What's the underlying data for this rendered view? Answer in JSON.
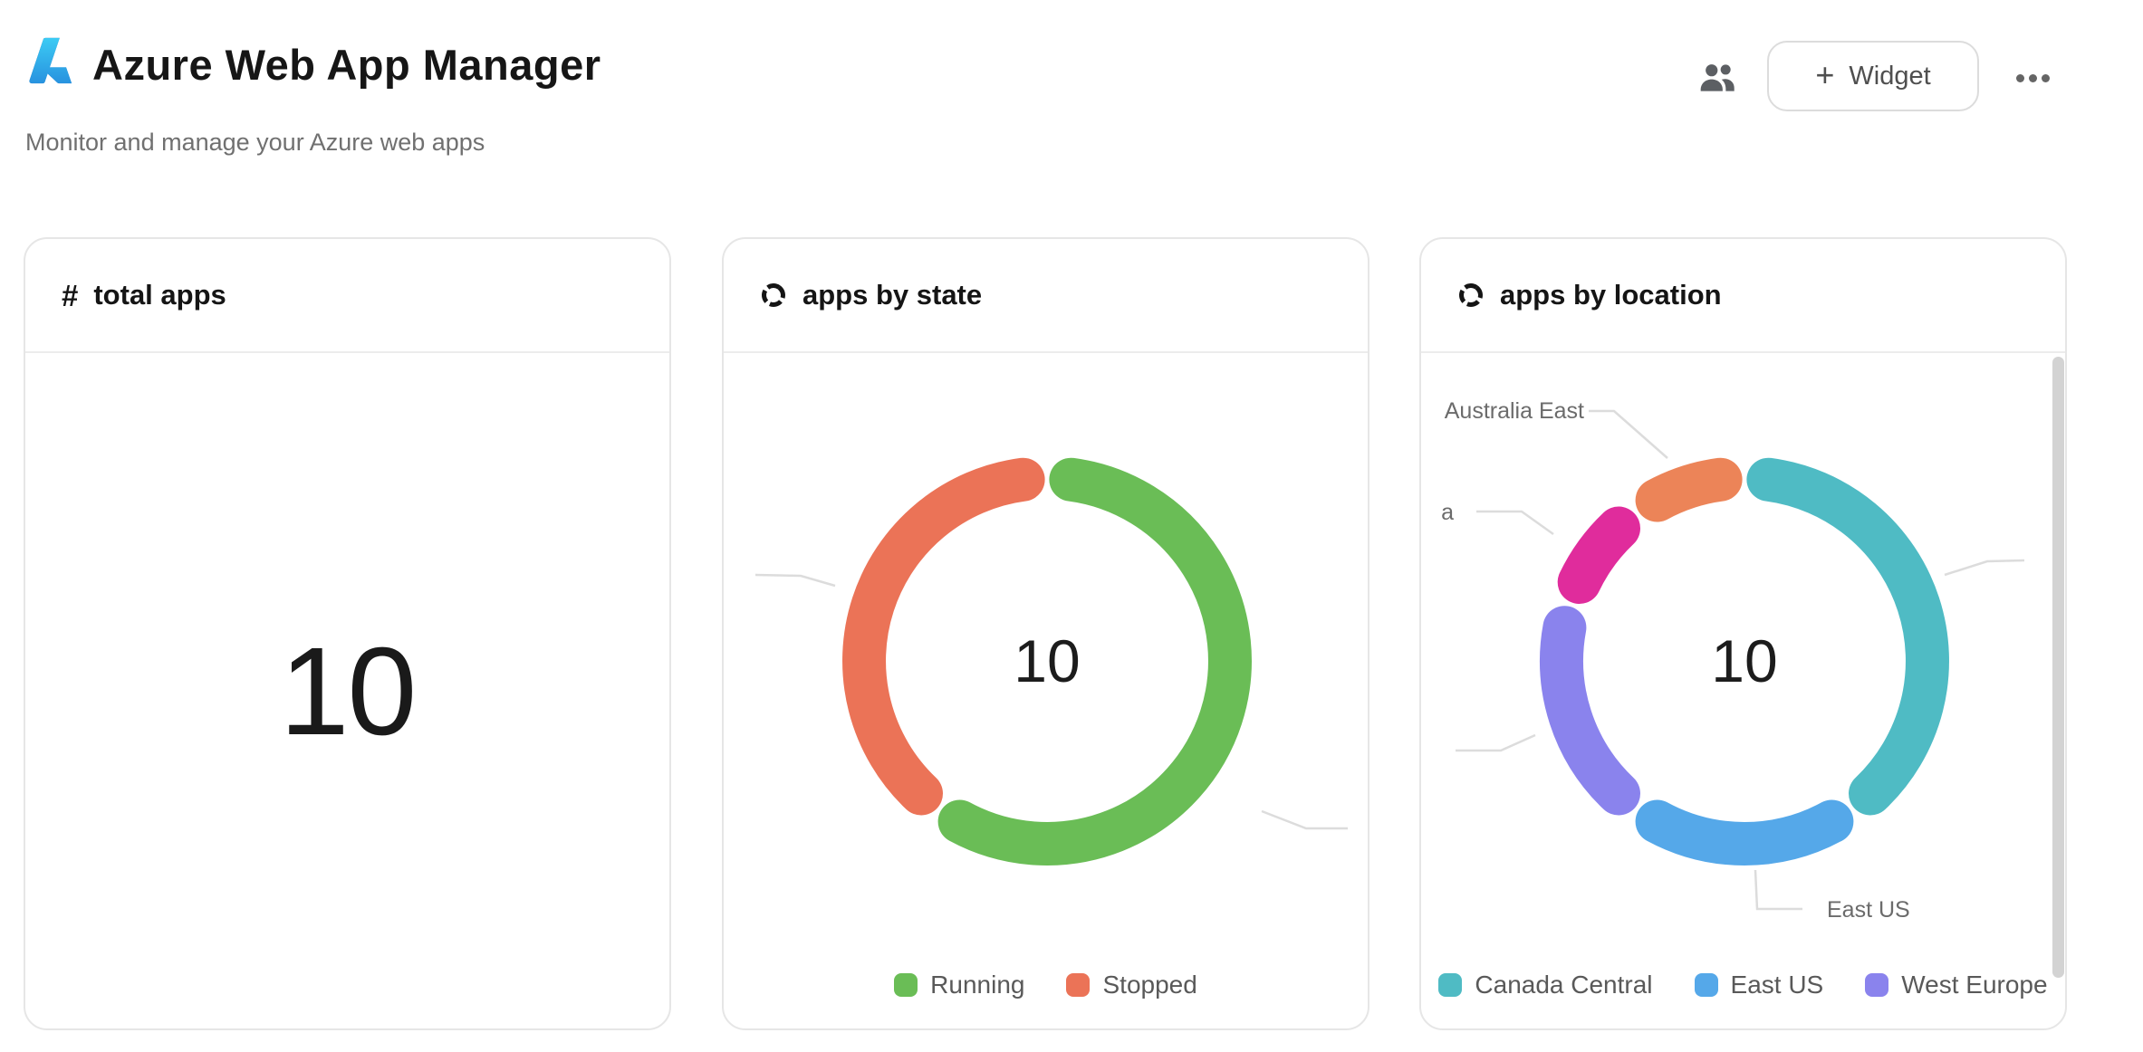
{
  "header": {
    "app_title": "Azure Web App Manager",
    "subtitle": "Monitor and manage your Azure web apps",
    "widget_button": {
      "plus": "+",
      "label": "Widget"
    }
  },
  "total_apps_card": {
    "icon_symbol": "#",
    "title": "total apps",
    "value": "10"
  },
  "chart_data": [
    {
      "type": "donut",
      "title": "apps by state",
      "center_label": "10",
      "total": 10,
      "series": [
        {
          "name": "Running",
          "value": 6,
          "color": "#6ABD56"
        },
        {
          "name": "Stopped",
          "value": 4,
          "color": "#EB7357"
        }
      ],
      "legend": [
        "Running",
        "Stopped"
      ],
      "legend_position": "bottom",
      "callout_labels": [],
      "unlabeled_leader_lines": 2
    },
    {
      "type": "donut",
      "title": "apps by location",
      "center_label": "10",
      "total": 10,
      "series": [
        {
          "name": "Canada Central",
          "value": 4,
          "color": "#4FBBC4"
        },
        {
          "name": "East US",
          "value": 2,
          "color": "#55A8E9"
        },
        {
          "name": "West Europe",
          "value": 2,
          "color": "#8A83ED"
        },
        {
          "name": "a",
          "value": 1,
          "color": "#E02C9C",
          "label_truncated": true
        },
        {
          "name": "Australia East",
          "value": 1,
          "color": "#EC8458"
        }
      ],
      "legend": [
        "Canada Central",
        "East US",
        "West Europe"
      ],
      "legend_position": "bottom",
      "callout_labels": [
        "Australia East",
        "East US",
        "a"
      ],
      "unlabeled_leader_lines": 2,
      "has_scrollbar": true
    }
  ]
}
